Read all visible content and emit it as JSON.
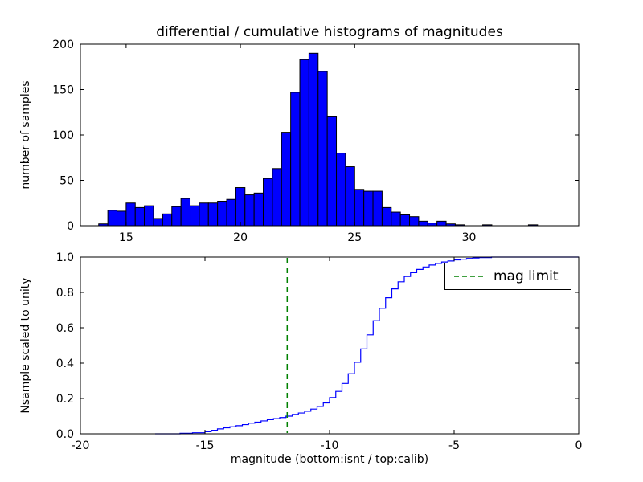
{
  "chart_data": [
    {
      "type": "bar",
      "name": "differential-histogram",
      "title": "differential / cumulative histograms of magnitudes",
      "xlabel": "",
      "ylabel": "number of samples",
      "xlim": [
        13,
        34.8
      ],
      "ylim": [
        0,
        200
      ],
      "xticks": [
        15,
        20,
        25,
        30
      ],
      "xticklabels": [
        "15",
        "20",
        "25",
        "30"
      ],
      "yticks": [
        0,
        50,
        100,
        150,
        200
      ],
      "yticklabels": [
        "0",
        "50",
        "100",
        "150",
        "200"
      ],
      "bar_color": "#0000ff",
      "bar_edge_color": "#000000",
      "bin_start": 13.8,
      "bin_width": 0.4,
      "counts": [
        2,
        17,
        16,
        25,
        20,
        22,
        8,
        13,
        21,
        30,
        22,
        25,
        25,
        27,
        29,
        42,
        34,
        36,
        52,
        63,
        103,
        147,
        183,
        190,
        170,
        120,
        80,
        65,
        40,
        38,
        38,
        20,
        15,
        12,
        10,
        5,
        3,
        5,
        2,
        1,
        0,
        0,
        1,
        0,
        0,
        0,
        0,
        1
      ]
    },
    {
      "type": "line",
      "name": "cumulative-histogram",
      "step": true,
      "xlabel": "magnitude (bottom:isnt / top:calib)",
      "ylabel": "Nsample scaled to unity",
      "xlim": [
        -20,
        0
      ],
      "ylim": [
        0,
        1
      ],
      "xticks": [
        -20,
        -15,
        -10,
        -5,
        0
      ],
      "xticklabels": [
        "-20",
        "-15",
        "-10",
        "-5",
        "0"
      ],
      "yticks": [
        0,
        0.2,
        0.4,
        0.6,
        0.8,
        1.0
      ],
      "yticklabels": [
        "0.0",
        "0.2",
        "0.4",
        "0.6",
        "0.8",
        "1.0"
      ],
      "line_color": "#0000ff",
      "x": [
        -17,
        -16,
        -15.5,
        -15,
        -14.75,
        -14.5,
        -14.25,
        -14,
        -13.75,
        -13.5,
        -13.25,
        -13,
        -12.75,
        -12.5,
        -12.25,
        -12,
        -11.75,
        -11.5,
        -11.25,
        -11,
        -10.75,
        -10.5,
        -10.25,
        -10,
        -9.75,
        -9.5,
        -9.25,
        -9,
        -8.75,
        -8.5,
        -8.25,
        -8,
        -7.75,
        -7.5,
        -7.25,
        -7,
        -6.75,
        -6.5,
        -6.25,
        -6,
        -5.75,
        -5.5,
        -5.25,
        -5,
        -4.75,
        -4.5,
        -4.25,
        -4,
        -3.5,
        0
      ],
      "y": [
        0,
        0.003,
        0.006,
        0.012,
        0.02,
        0.028,
        0.034,
        0.04,
        0.046,
        0.052,
        0.06,
        0.066,
        0.073,
        0.08,
        0.086,
        0.092,
        0.1,
        0.11,
        0.118,
        0.128,
        0.14,
        0.155,
        0.175,
        0.205,
        0.24,
        0.285,
        0.34,
        0.405,
        0.48,
        0.56,
        0.64,
        0.71,
        0.77,
        0.82,
        0.86,
        0.89,
        0.912,
        0.93,
        0.944,
        0.955,
        0.964,
        0.972,
        0.978,
        0.984,
        0.988,
        0.992,
        0.995,
        0.997,
        1.0,
        1.0
      ],
      "mag_limit": {
        "x": -11.7,
        "color": "#008000",
        "linestyle": "dashed",
        "label": "mag limit"
      }
    }
  ],
  "legend": {
    "position": "upper right",
    "entries": [
      {
        "label": "mag limit",
        "color": "#008000",
        "style": "dashed"
      }
    ]
  }
}
